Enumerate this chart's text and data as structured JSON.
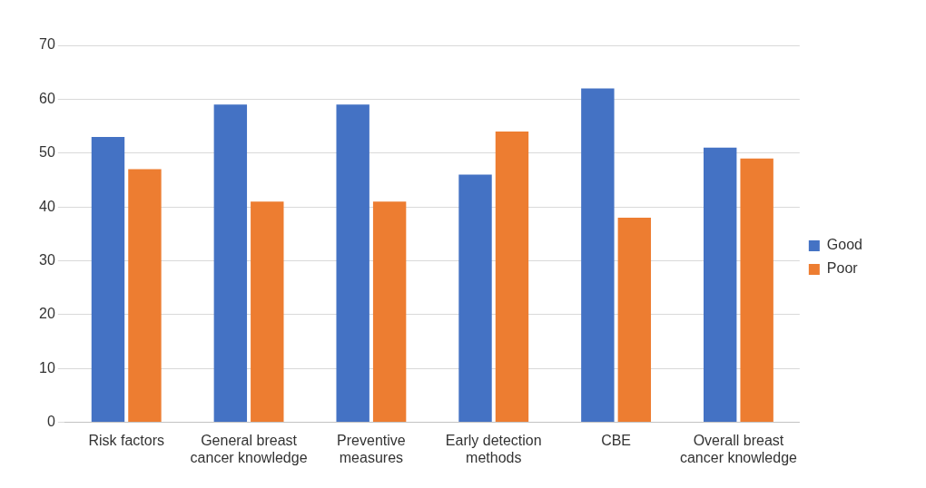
{
  "chart_data": {
    "type": "bar",
    "categories": [
      "Risk factors",
      "General breast cancer knowledge",
      "Preventive measures",
      "Early detection methods",
      "CBE",
      "Overall breast cancer knowledge"
    ],
    "series": [
      {
        "name": "Good",
        "color": "#4472c4",
        "values": [
          53,
          59,
          59,
          46,
          62,
          51
        ]
      },
      {
        "name": "Poor",
        "color": "#ed7d31",
        "values": [
          47,
          41,
          41,
          54,
          38,
          49
        ]
      }
    ],
    "ylim": [
      0,
      70
    ],
    "yticks": [
      0,
      10,
      20,
      30,
      40,
      50,
      60,
      70
    ],
    "grid": "y",
    "legend": "right"
  }
}
